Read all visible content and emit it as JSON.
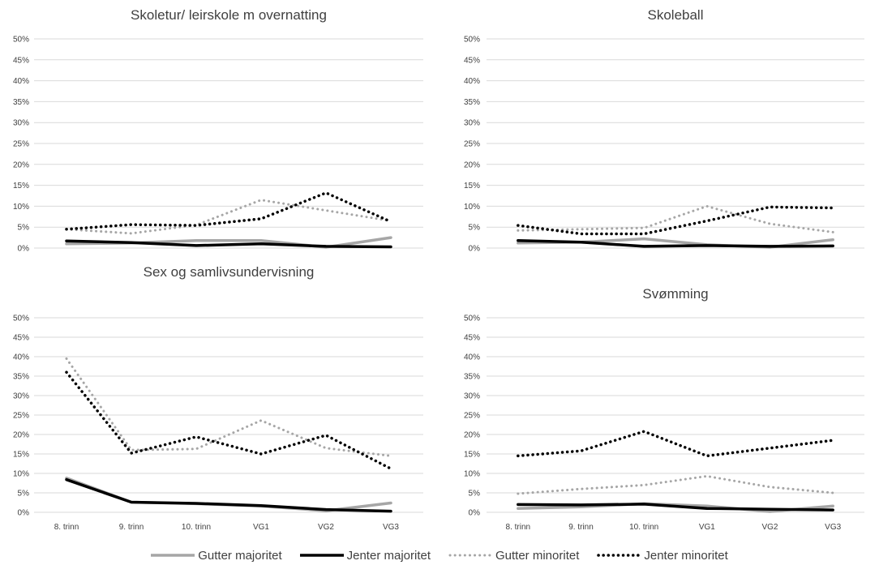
{
  "colors": {
    "gutter_majoritet": "#a6a6a6",
    "jenter_majoritet": "#000000",
    "gutter_minoritet": "#a6a6a6",
    "jenter_minoritet": "#000000",
    "gridline": "#d9d9d9",
    "text": "#404040"
  },
  "legend": [
    {
      "label": "Gutter majoritet",
      "style": "solid-gray"
    },
    {
      "label": "Jenter majoritet",
      "style": "solid-black"
    },
    {
      "label": "Gutter minoritet",
      "style": "dotted-gray"
    },
    {
      "label": "Jenter minoritet",
      "style": "dotted-black"
    }
  ],
  "chart_data": [
    {
      "type": "line",
      "title": "Skoletur/ leirskole m overnatting",
      "categories": [
        "8. trinn",
        "9. trinn",
        "10. trinn",
        "VG1",
        "VG2",
        "VG3"
      ],
      "show_category_labels": false,
      "ylim": [
        0,
        50
      ],
      "yticks": [
        "0%",
        "5%",
        "10%",
        "15%",
        "20%",
        "25%",
        "30%",
        "35%",
        "40%",
        "45%",
        "50%"
      ],
      "grid": true,
      "series": [
        {
          "name": "Gutter majoritet",
          "values": [
            1.0,
            1.2,
            1.8,
            1.8,
            0.2,
            2.5
          ]
        },
        {
          "name": "Jenter majoritet",
          "values": [
            1.7,
            1.3,
            0.6,
            1.0,
            0.4,
            0.3
          ]
        },
        {
          "name": "Gutter minoritet",
          "values": [
            4.5,
            3.5,
            5.5,
            11.5,
            9.0,
            6.5
          ]
        },
        {
          "name": "Jenter minoritet",
          "values": [
            4.5,
            5.6,
            5.4,
            7.0,
            13.2,
            6.3
          ]
        }
      ]
    },
    {
      "type": "line",
      "title": "Skoleball",
      "categories": [
        "8. trinn",
        "9. trinn",
        "10. trinn",
        "VG1",
        "VG2",
        "VG3"
      ],
      "show_category_labels": false,
      "ylim": [
        0,
        50
      ],
      "yticks": [
        "0%",
        "5%",
        "10%",
        "15%",
        "20%",
        "25%",
        "30%",
        "35%",
        "40%",
        "45%",
        "50%"
      ],
      "grid": true,
      "series": [
        {
          "name": "Gutter majoritet",
          "values": [
            1.2,
            1.4,
            2.2,
            0.8,
            0.2,
            2.0
          ]
        },
        {
          "name": "Jenter majoritet",
          "values": [
            1.8,
            1.4,
            0.4,
            0.6,
            0.4,
            0.5
          ]
        },
        {
          "name": "Gutter minoritet",
          "values": [
            4.2,
            4.5,
            4.8,
            10.0,
            5.8,
            3.8
          ]
        },
        {
          "name": "Jenter minoritet",
          "values": [
            5.4,
            3.4,
            3.4,
            6.5,
            9.8,
            9.6
          ]
        }
      ]
    },
    {
      "type": "line",
      "title": "Sex og samlivsundervisning",
      "categories": [
        "8. trinn",
        "9. trinn",
        "10. trinn",
        "VG1",
        "VG2",
        "VG3"
      ],
      "show_category_labels": true,
      "ylim": [
        0,
        50
      ],
      "yticks": [
        "0%",
        "5%",
        "10%",
        "15%",
        "20%",
        "25%",
        "30%",
        "35%",
        "40%",
        "45%",
        "50%"
      ],
      "grid": true,
      "series": [
        {
          "name": "Gutter majoritet",
          "values": [
            8.8,
            2.6,
            2.2,
            1.6,
            0.4,
            2.4
          ]
        },
        {
          "name": "Jenter majoritet",
          "values": [
            8.4,
            2.6,
            2.3,
            1.7,
            0.7,
            0.3
          ]
        },
        {
          "name": "Gutter minoritet",
          "values": [
            39.5,
            16.0,
            16.3,
            23.6,
            16.5,
            14.5
          ]
        },
        {
          "name": "Jenter minoritet",
          "values": [
            36.0,
            15.2,
            19.4,
            15.0,
            19.8,
            11.2
          ]
        }
      ]
    },
    {
      "type": "line",
      "title": "Svømming",
      "categories": [
        "8. trinn",
        "9. trinn",
        "10. trinn",
        "VG1",
        "VG2",
        "VG3"
      ],
      "show_category_labels": true,
      "ylim": [
        0,
        50
      ],
      "yticks": [
        "0%",
        "5%",
        "10%",
        "15%",
        "20%",
        "25%",
        "30%",
        "35%",
        "40%",
        "45%",
        "50%"
      ],
      "grid": true,
      "series": [
        {
          "name": "Gutter majoritet",
          "values": [
            1.0,
            1.4,
            2.2,
            1.6,
            0.2,
            1.6
          ]
        },
        {
          "name": "Jenter majoritet",
          "values": [
            2.0,
            1.9,
            2.1,
            1.0,
            0.8,
            0.6
          ]
        },
        {
          "name": "Gutter minoritet",
          "values": [
            4.8,
            6.0,
            7.0,
            9.3,
            6.5,
            5.0
          ]
        },
        {
          "name": "Jenter minoritet",
          "values": [
            14.5,
            15.8,
            20.8,
            14.5,
            16.5,
            18.5
          ]
        }
      ]
    }
  ]
}
